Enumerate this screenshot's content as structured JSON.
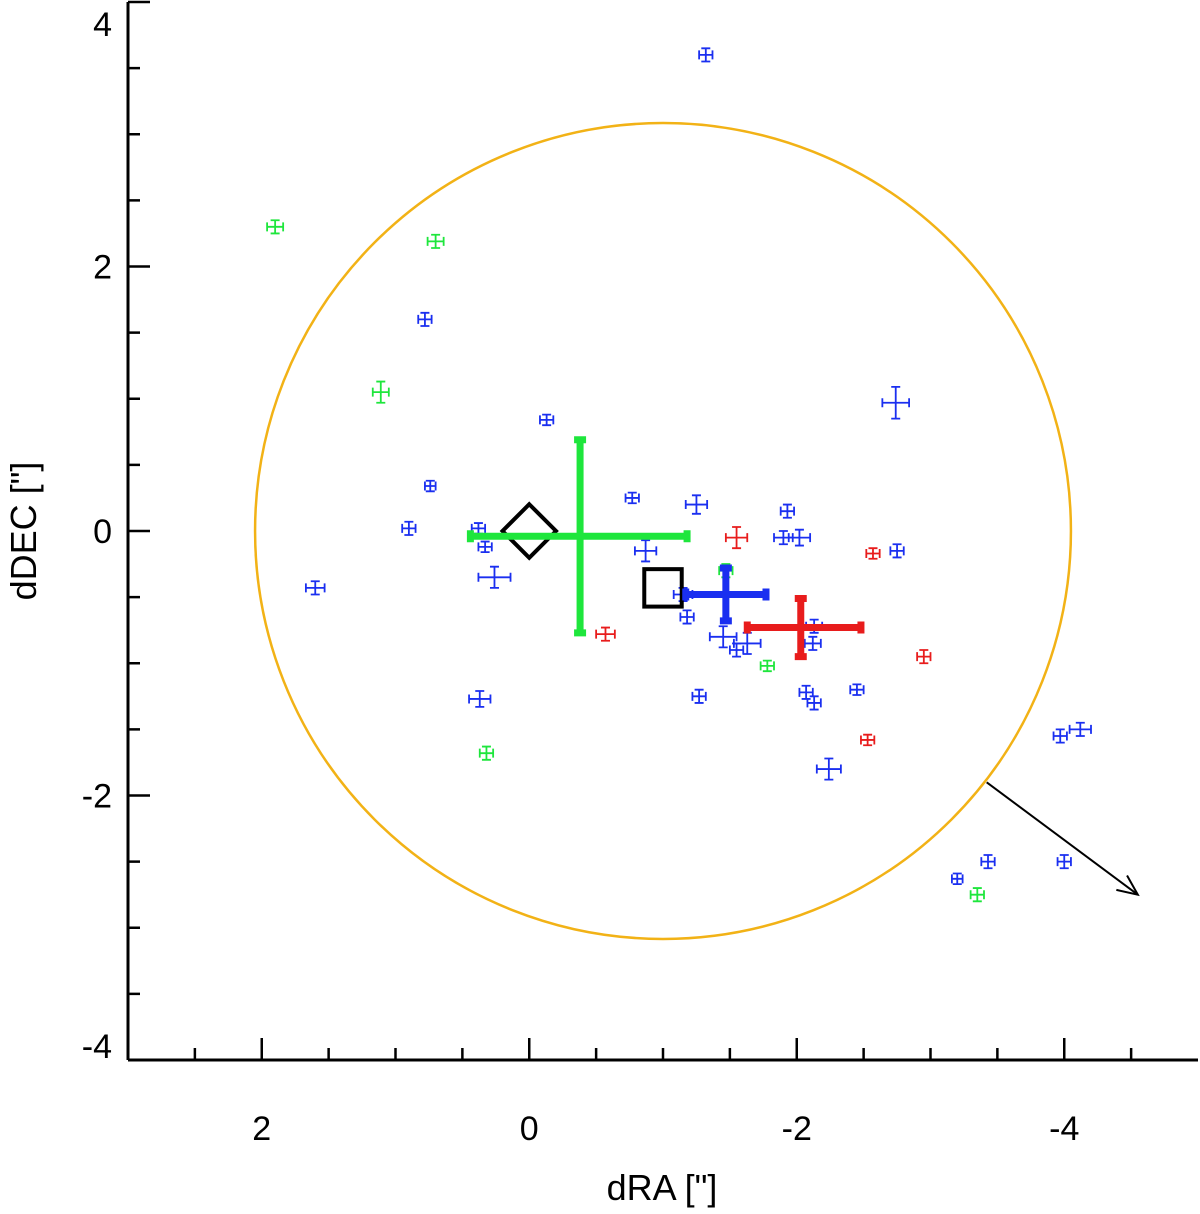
{
  "chart_data": {
    "type": "scatter",
    "title": "",
    "xlabel": "dRA [\"]",
    "ylabel": "dDEC [\"]",
    "xlim": [
      3.0,
      -5.0
    ],
    "ylim": [
      -4.0,
      4.0
    ],
    "x_ticks": [
      {
        "value": 2,
        "label": "2"
      },
      {
        "value": 0,
        "label": "0"
      },
      {
        "value": -2,
        "label": "-2"
      },
      {
        "value": -4,
        "label": "-4"
      }
    ],
    "y_ticks": [
      {
        "value": 4,
        "label": "4"
      },
      {
        "value": 2,
        "label": "2"
      },
      {
        "value": 0,
        "label": "0"
      },
      {
        "value": -2,
        "label": "-2"
      },
      {
        "value": -4,
        "label": "-4"
      }
    ],
    "x_minor_step": 0.5,
    "y_minor_step": 0.5,
    "colors": {
      "blue": "#1a2ff0",
      "green": "#1ee63c",
      "red": "#e81c1c",
      "orange": "#f2b216",
      "black": "#000000"
    },
    "circle": {
      "center": [
        -1.0,
        0.0
      ],
      "radius": 3.05,
      "color": "orange"
    },
    "arrow": {
      "from": [
        -3.42,
        -1.9
      ],
      "to": [
        -4.55,
        -2.75
      ],
      "color": "black"
    },
    "markers": [
      {
        "shape": "diamond",
        "x": 0.0,
        "y": 0.0,
        "size": 0.2
      },
      {
        "shape": "square",
        "x": -1.0,
        "y": -0.43,
        "size": 0.14
      }
    ],
    "main_points": [
      {
        "name": "green",
        "x": -0.38,
        "y": -0.04,
        "xerr_minus": 0.82,
        "xerr_plus": 0.8,
        "yerr": 0.73
      },
      {
        "name": "blue",
        "x": -1.47,
        "y": -0.48,
        "xerr_minus": 0.3,
        "xerr_plus": 0.3,
        "yerr": 0.2
      },
      {
        "name": "red",
        "x": -2.03,
        "y": -0.73,
        "xerr_minus": 0.4,
        "xerr_plus": 0.45,
        "yerr": 0.22
      }
    ],
    "series": [
      {
        "name": "blue",
        "points": [
          {
            "x": -1.32,
            "y": 3.6,
            "xe": 0.05,
            "ye": 0.05
          },
          {
            "x": 0.78,
            "y": 1.6,
            "xe": 0.05,
            "ye": 0.05
          },
          {
            "x": -0.13,
            "y": 0.84,
            "xe": 0.05,
            "ye": 0.04
          },
          {
            "x": -2.74,
            "y": 0.97,
            "xe": 0.1,
            "ye": 0.12
          },
          {
            "x": 0.74,
            "y": 0.34,
            "xe": 0.04,
            "ye": 0.04
          },
          {
            "x": -0.77,
            "y": 0.25,
            "xe": 0.05,
            "ye": 0.04
          },
          {
            "x": -1.25,
            "y": 0.2,
            "xe": 0.08,
            "ye": 0.07
          },
          {
            "x": -1.93,
            "y": 0.15,
            "xe": 0.05,
            "ye": 0.05
          },
          {
            "x": 0.9,
            "y": 0.02,
            "xe": 0.05,
            "ye": 0.05
          },
          {
            "x": 0.38,
            "y": 0.02,
            "xe": 0.05,
            "ye": 0.04
          },
          {
            "x": -1.9,
            "y": -0.05,
            "xe": 0.07,
            "ye": 0.05
          },
          {
            "x": -2.02,
            "y": -0.05,
            "xe": 0.08,
            "ye": 0.06
          },
          {
            "x": 0.33,
            "y": -0.12,
            "xe": 0.05,
            "ye": 0.04
          },
          {
            "x": -0.87,
            "y": -0.15,
            "xe": 0.08,
            "ye": 0.08
          },
          {
            "x": -2.75,
            "y": -0.15,
            "xe": 0.05,
            "ye": 0.05
          },
          {
            "x": 0.26,
            "y": -0.35,
            "xe": 0.12,
            "ye": 0.08
          },
          {
            "x": 1.6,
            "y": -0.43,
            "xe": 0.07,
            "ye": 0.05
          },
          {
            "x": -1.15,
            "y": -0.48,
            "xe": 0.07,
            "ye": 0.05
          },
          {
            "x": -1.18,
            "y": -0.65,
            "xe": 0.05,
            "ye": 0.05
          },
          {
            "x": -2.13,
            "y": -0.72,
            "xe": 0.06,
            "ye": 0.05
          },
          {
            "x": -1.45,
            "y": -0.8,
            "xe": 0.1,
            "ye": 0.08
          },
          {
            "x": -1.63,
            "y": -0.85,
            "xe": 0.1,
            "ye": 0.08
          },
          {
            "x": -2.12,
            "y": -0.85,
            "xe": 0.06,
            "ye": 0.05
          },
          {
            "x": -1.55,
            "y": -0.9,
            "xe": 0.05,
            "ye": 0.05
          },
          {
            "x": -2.45,
            "y": -1.2,
            "xe": 0.05,
            "ye": 0.04
          },
          {
            "x": -1.27,
            "y": -1.25,
            "xe": 0.05,
            "ye": 0.05
          },
          {
            "x": 0.37,
            "y": -1.27,
            "xe": 0.08,
            "ye": 0.06
          },
          {
            "x": -2.07,
            "y": -1.22,
            "xe": 0.05,
            "ye": 0.05
          },
          {
            "x": -2.13,
            "y": -1.3,
            "xe": 0.05,
            "ye": 0.05
          },
          {
            "x": -4.12,
            "y": -1.5,
            "xe": 0.08,
            "ye": 0.05
          },
          {
            "x": -3.97,
            "y": -1.55,
            "xe": 0.05,
            "ye": 0.05
          },
          {
            "x": -2.24,
            "y": -1.8,
            "xe": 0.09,
            "ye": 0.08
          },
          {
            "x": -3.43,
            "y": -2.5,
            "xe": 0.05,
            "ye": 0.05
          },
          {
            "x": -4.0,
            "y": -2.5,
            "xe": 0.05,
            "ye": 0.05
          },
          {
            "x": -3.2,
            "y": -2.63,
            "xe": 0.04,
            "ye": 0.04
          }
        ]
      },
      {
        "name": "green",
        "points": [
          {
            "x": 1.9,
            "y": 2.3,
            "xe": 0.06,
            "ye": 0.05
          },
          {
            "x": 0.7,
            "y": 2.19,
            "xe": 0.06,
            "ye": 0.05
          },
          {
            "x": 1.11,
            "y": 1.05,
            "xe": 0.06,
            "ye": 0.08
          },
          {
            "x": -1.47,
            "y": -0.3,
            "xe": 0.05,
            "ye": 0.05
          },
          {
            "x": -1.78,
            "y": -1.02,
            "xe": 0.05,
            "ye": 0.04
          },
          {
            "x": 0.32,
            "y": -1.68,
            "xe": 0.05,
            "ye": 0.05
          },
          {
            "x": -3.35,
            "y": -2.75,
            "xe": 0.05,
            "ye": 0.05
          }
        ]
      },
      {
        "name": "red",
        "points": [
          {
            "x": -1.55,
            "y": -0.05,
            "xe": 0.08,
            "ye": 0.08
          },
          {
            "x": -2.57,
            "y": -0.17,
            "xe": 0.05,
            "ye": 0.04
          },
          {
            "x": -0.57,
            "y": -0.78,
            "xe": 0.07,
            "ye": 0.05
          },
          {
            "x": -2.95,
            "y": -0.95,
            "xe": 0.05,
            "ye": 0.05
          },
          {
            "x": -2.53,
            "y": -1.58,
            "xe": 0.05,
            "ye": 0.04
          }
        ]
      }
    ]
  }
}
